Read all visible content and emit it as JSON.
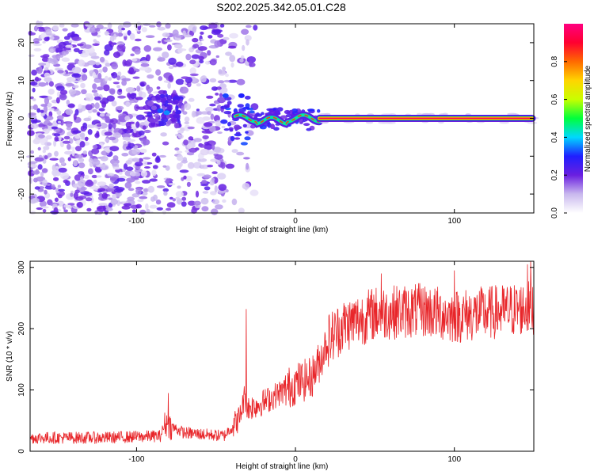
{
  "title": "S202.2025.342.05.01.C28",
  "chart_data": [
    {
      "type": "heatmap",
      "xlabel": "Height of straight line (km)",
      "ylabel": "Frequency (Hz)",
      "xlim": [
        -167,
        150
      ],
      "ylim": [
        -25,
        25
      ],
      "xticks": [
        -100,
        0,
        100
      ],
      "yticks": [
        20,
        10,
        0,
        -10,
        -20
      ],
      "xtick_labels": [
        "-100",
        "0",
        "100"
      ],
      "ytick_labels": [
        "20",
        "10",
        "0",
        "-10",
        "-20"
      ],
      "colorbar": {
        "label": "Normalized spectral amplitude",
        "range": [
          0,
          1
        ],
        "ticks": [
          0.0,
          0.2,
          0.4,
          0.6,
          0.8
        ],
        "tick_labels": [
          "0.0",
          "0.2",
          "0.4",
          "0.6",
          "0.8"
        ],
        "colors": [
          "#ffffff",
          "#c9b8ee",
          "#6a1fe0",
          "#1f1fff",
          "#00d8ff",
          "#00ff3c",
          "#c8ff00",
          "#ffd500",
          "#ff6a00",
          "#ff0030",
          "#ff0080"
        ]
      },
      "features": {
        "noise_region_km": [
          -167,
          -45
        ],
        "cluster_center": {
          "x": -82,
          "y": 2
        },
        "signal_line_start_km": 15,
        "signal_frequency_hz": 0
      }
    },
    {
      "type": "line",
      "xlabel": "Height of straight line (km)",
      "ylabel": "SNR (10 * v/v)",
      "xlim": [
        -167,
        150
      ],
      "ylim": [
        0,
        310
      ],
      "xticks": [
        -100,
        0,
        100
      ],
      "yticks": [
        0,
        100,
        200,
        300
      ],
      "xtick_labels": [
        "-100",
        "0",
        "100"
      ],
      "ytick_labels": [
        "0",
        "100",
        "200",
        "300"
      ],
      "series": [
        {
          "name": "SNR",
          "color": "#e8262a",
          "trend_x": [
            -167,
            -120,
            -85,
            -82,
            -70,
            -45,
            -35,
            -32,
            -30,
            -20,
            -10,
            0,
            10,
            15,
            20,
            30,
            50,
            80,
            100,
            130,
            150
          ],
          "trend_y": [
            22,
            22,
            25,
            45,
            30,
            25,
            55,
            90,
            70,
            80,
            95,
            110,
            120,
            145,
            180,
            205,
            225,
            230,
            220,
            228,
            235
          ],
          "spikes_x": [
            -80,
            -31,
            54,
            100,
            146,
            148
          ],
          "spikes_y": [
            95,
            232,
            290,
            295,
            305,
            310
          ]
        }
      ]
    }
  ]
}
